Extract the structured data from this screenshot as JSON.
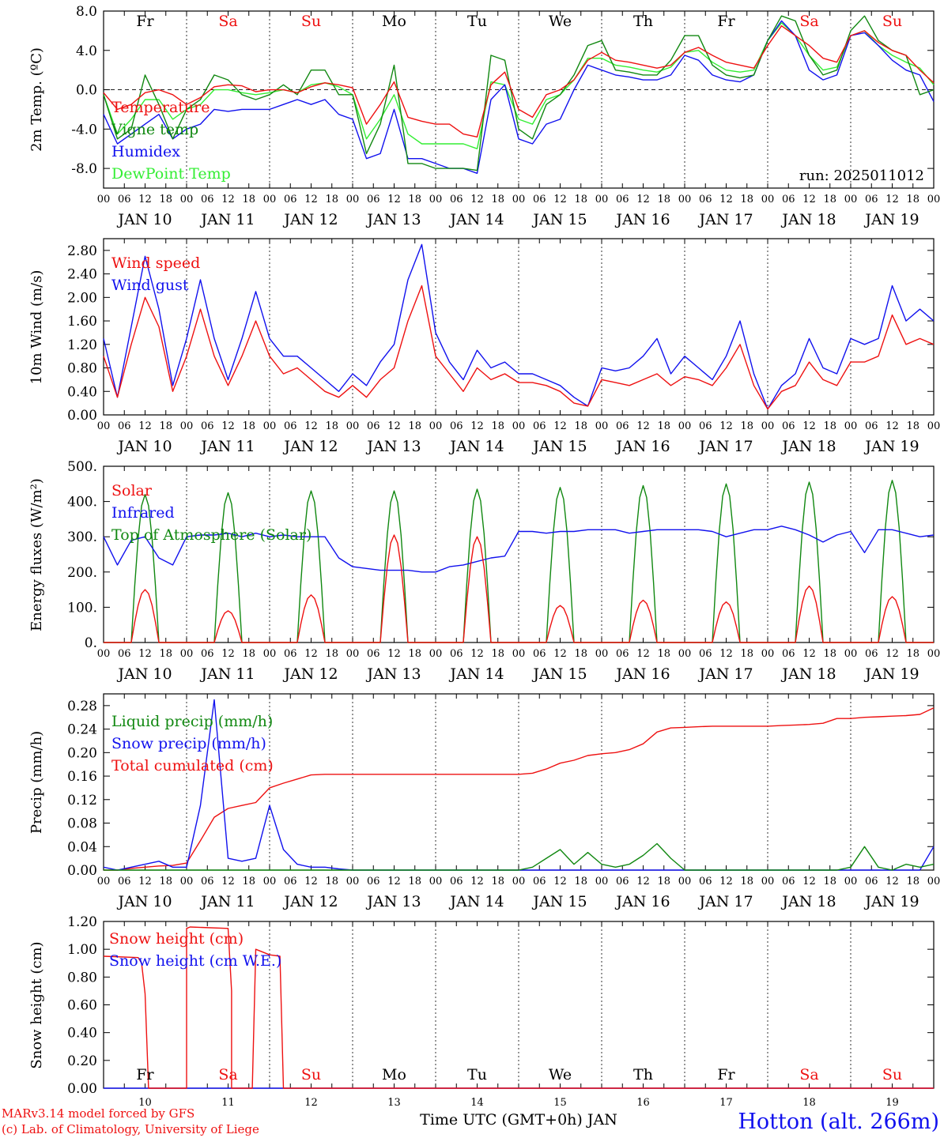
{
  "figure": {
    "run_label": "run: 2025011012",
    "credit_line1": "MARv3.14 model forced by GFS",
    "credit_line2": "(c) Lab. of Climatology, University of Liege",
    "station": "Hotton (alt. 266m)",
    "xlabel": "Time UTC (GMT+0h) JAN",
    "colors": {
      "red": "#ee1111",
      "green": "#118811",
      "blue": "#1111ee",
      "lightgreen": "#33ee33",
      "axis": "#000000"
    },
    "time_axis": {
      "hour_ticks": [
        "00",
        "06",
        "12",
        "18"
      ],
      "day_dates": [
        "JAN 10",
        "JAN 11",
        "JAN 12",
        "JAN 13",
        "JAN 14",
        "JAN 15",
        "JAN 16",
        "JAN 17",
        "JAN 18",
        "JAN 19"
      ],
      "day_names": [
        "Fr",
        "Sa",
        "Su",
        "Mo",
        "Tu",
        "We",
        "Th",
        "Fr",
        "Sa",
        "Su"
      ],
      "weekend_flags": [
        false,
        true,
        true,
        false,
        false,
        false,
        false,
        false,
        true,
        true
      ],
      "bottom_numbers": [
        "10",
        "11",
        "12",
        "13",
        "14",
        "15",
        "16",
        "17",
        "18",
        "19"
      ],
      "final_tick": "00"
    }
  },
  "chart_data": [
    {
      "type": "line",
      "ylabel": "2m Temp. (ºC)",
      "ylim": [
        -10,
        8
      ],
      "ytick_labels": [
        "-8.0",
        "-4.0",
        "0.0",
        "4.0",
        "8.0"
      ],
      "show_day_names": true,
      "zero_line": true,
      "x": [
        0,
        4,
        8,
        12,
        16,
        20,
        24,
        28,
        32,
        36,
        40,
        44,
        48,
        52,
        56,
        60,
        64,
        68,
        72,
        76,
        80,
        84,
        88,
        92,
        96,
        100,
        104,
        108,
        112,
        116,
        120,
        124,
        128,
        132,
        136,
        140,
        144,
        148,
        152,
        156,
        160,
        164,
        168,
        172,
        176,
        180,
        184,
        188,
        192,
        196,
        200,
        204,
        208,
        212,
        216,
        220,
        224,
        228,
        232,
        236,
        240
      ],
      "series": [
        {
          "name": "Temperature",
          "color": "red",
          "values": [
            -0.3,
            -2.0,
            -1.5,
            -0.3,
            0.0,
            -0.5,
            -1.5,
            -0.8,
            0.3,
            0.5,
            0.4,
            -0.2,
            0.0,
            0.0,
            -0.3,
            0.3,
            0.7,
            0.5,
            0.2,
            -3.5,
            -1.5,
            0.8,
            -2.8,
            -3.2,
            -3.5,
            -3.5,
            -4.5,
            -4.8,
            0.5,
            1.8,
            -2.0,
            -2.8,
            -0.5,
            0.0,
            1.0,
            3.0,
            3.8,
            3.0,
            2.8,
            2.5,
            2.2,
            2.5,
            3.8,
            4.3,
            3.5,
            2.8,
            2.5,
            2.2,
            4.5,
            6.5,
            5.5,
            4.5,
            3.2,
            2.8,
            5.5,
            6.0,
            4.8,
            4.0,
            3.5,
            2.0,
            0.7
          ]
        },
        {
          "name": "Vigne temp",
          "color": "green",
          "values": [
            -0.5,
            -5.0,
            -4.0,
            1.5,
            -1.5,
            -5.0,
            -2.0,
            -1.0,
            1.5,
            1.0,
            -0.5,
            -1.0,
            -0.5,
            0.5,
            -0.5,
            2.0,
            2.0,
            -0.5,
            -0.5,
            -6.5,
            -3.5,
            2.5,
            -7.5,
            -7.5,
            -8.0,
            -8.0,
            -8.0,
            -8.2,
            3.5,
            3.0,
            -4.0,
            -5.0,
            -1.5,
            -0.5,
            1.5,
            4.5,
            5.0,
            2.0,
            1.8,
            1.5,
            1.5,
            3.0,
            5.5,
            5.5,
            2.5,
            1.5,
            1.2,
            1.5,
            5.0,
            7.5,
            7.0,
            3.5,
            1.5,
            2.0,
            6.0,
            7.5,
            5.0,
            4.0,
            3.5,
            -0.5,
            0.0
          ]
        },
        {
          "name": "Humidex",
          "color": "blue",
          "values": [
            -2.5,
            -5.5,
            -4.5,
            -3.5,
            -2.5,
            -5.0,
            -4.0,
            -3.5,
            -2.0,
            -2.2,
            -2.0,
            -2.0,
            -2.0,
            -1.5,
            -1.0,
            -1.5,
            -1.0,
            -2.5,
            -3.0,
            -7.0,
            -6.5,
            -2.0,
            -7.0,
            -7.0,
            -7.5,
            -8.0,
            -8.0,
            -8.5,
            -1.0,
            0.5,
            -5.0,
            -5.5,
            -3.5,
            -3.0,
            0.0,
            2.5,
            2.0,
            1.5,
            1.3,
            1.0,
            1.0,
            1.5,
            3.5,
            3.0,
            1.5,
            1.0,
            0.8,
            1.5,
            5.0,
            7.0,
            5.5,
            2.0,
            1.0,
            1.5,
            5.5,
            5.8,
            4.5,
            3.0,
            2.0,
            1.5,
            -1.2
          ]
        },
        {
          "name": "DewPoint Temp",
          "color": "lightgreen",
          "values": [
            -0.5,
            -4.5,
            -3.0,
            -1.0,
            -1.0,
            -3.0,
            -2.0,
            -1.5,
            0.0,
            0.0,
            -0.3,
            -0.5,
            -0.3,
            0.0,
            -0.3,
            0.5,
            0.7,
            0.3,
            -0.5,
            -5.0,
            -3.0,
            -0.5,
            -4.5,
            -5.5,
            -5.5,
            -5.5,
            -5.5,
            -6.0,
            0.8,
            0.5,
            -3.0,
            -3.5,
            -1.0,
            -0.5,
            1.0,
            3.2,
            3.2,
            2.5,
            2.3,
            2.0,
            1.8,
            2.3,
            3.8,
            4.0,
            2.8,
            2.0,
            1.8,
            2.0,
            5.0,
            6.8,
            5.5,
            3.5,
            2.0,
            2.3,
            5.5,
            6.0,
            4.5,
            3.5,
            2.8,
            2.2,
            0.5
          ]
        }
      ]
    },
    {
      "type": "line",
      "ylabel": "10m Wind (m/s)",
      "ylim": [
        0,
        3.0
      ],
      "ytick_labels": [
        "0.00",
        "0.40",
        "0.80",
        "1.20",
        "1.60",
        "2.00",
        "2.40",
        "2.80"
      ],
      "show_day_names": false,
      "x": [
        0,
        4,
        8,
        12,
        16,
        20,
        24,
        28,
        32,
        36,
        40,
        44,
        48,
        52,
        56,
        60,
        64,
        68,
        72,
        76,
        80,
        84,
        88,
        92,
        96,
        100,
        104,
        108,
        112,
        116,
        120,
        124,
        128,
        132,
        136,
        140,
        144,
        148,
        152,
        156,
        160,
        164,
        168,
        172,
        176,
        180,
        184,
        188,
        192,
        196,
        200,
        204,
        208,
        212,
        216,
        220,
        224,
        228,
        232,
        236,
        240
      ],
      "series": [
        {
          "name": "Wind speed",
          "color": "red",
          "values": [
            1.0,
            0.3,
            1.2,
            2.0,
            1.5,
            0.4,
            1.0,
            1.8,
            1.0,
            0.5,
            1.0,
            1.6,
            1.0,
            0.7,
            0.8,
            0.6,
            0.4,
            0.3,
            0.5,
            0.3,
            0.6,
            0.8,
            1.6,
            2.2,
            1.0,
            0.7,
            0.4,
            0.8,
            0.6,
            0.7,
            0.55,
            0.55,
            0.5,
            0.4,
            0.2,
            0.15,
            0.6,
            0.55,
            0.5,
            0.6,
            0.7,
            0.5,
            0.65,
            0.6,
            0.5,
            0.8,
            1.2,
            0.5,
            0.1,
            0.4,
            0.5,
            0.9,
            0.6,
            0.5,
            0.9,
            0.9,
            1.0,
            1.7,
            1.2,
            1.3,
            1.2
          ]
        },
        {
          "name": "Wind gust",
          "color": "blue",
          "values": [
            1.3,
            0.3,
            1.5,
            2.7,
            1.8,
            0.5,
            1.3,
            2.3,
            1.3,
            0.6,
            1.3,
            2.1,
            1.3,
            1.0,
            1.0,
            0.8,
            0.6,
            0.4,
            0.7,
            0.5,
            0.9,
            1.2,
            2.3,
            2.9,
            1.4,
            0.9,
            0.6,
            1.1,
            0.8,
            0.9,
            0.7,
            0.7,
            0.6,
            0.5,
            0.3,
            0.15,
            0.8,
            0.75,
            0.8,
            1.0,
            1.3,
            0.7,
            1.0,
            0.8,
            0.6,
            1.0,
            1.6,
            0.7,
            0.1,
            0.5,
            0.7,
            1.3,
            0.8,
            0.7,
            1.3,
            1.2,
            1.3,
            2.2,
            1.6,
            1.8,
            1.6
          ]
        }
      ]
    },
    {
      "type": "line",
      "ylabel": "Energy fluxes (W/m²)",
      "ylim": [
        0,
        500
      ],
      "ytick_labels": [
        "0.",
        "100.",
        "200.",
        "300.",
        "400.",
        "500."
      ],
      "show_day_names": false,
      "sun_hours": [
        8,
        16
      ],
      "series": [
        {
          "name": "Solar",
          "color": "red",
          "daily_peaks": [
            150,
            90,
            135,
            305,
            300,
            105,
            120,
            115,
            160,
            130
          ]
        },
        {
          "name": "Infrared",
          "color": "blue",
          "x": [
            0,
            4,
            8,
            12,
            16,
            20,
            24,
            28,
            32,
            36,
            40,
            44,
            48,
            52,
            56,
            60,
            64,
            68,
            72,
            76,
            80,
            84,
            88,
            92,
            96,
            100,
            104,
            108,
            112,
            116,
            120,
            124,
            128,
            132,
            136,
            140,
            144,
            148,
            152,
            156,
            160,
            164,
            168,
            172,
            176,
            180,
            184,
            188,
            192,
            196,
            200,
            204,
            208,
            212,
            216,
            220,
            224,
            228,
            232,
            236,
            240
          ],
          "values": [
            300,
            220,
            290,
            300,
            240,
            220,
            300,
            305,
            305,
            310,
            300,
            310,
            300,
            305,
            300,
            300,
            300,
            240,
            215,
            210,
            205,
            205,
            205,
            200,
            200,
            215,
            220,
            230,
            240,
            245,
            315,
            315,
            310,
            315,
            315,
            320,
            320,
            320,
            310,
            315,
            320,
            320,
            320,
            320,
            315,
            300,
            310,
            320,
            320,
            330,
            320,
            305,
            285,
            305,
            315,
            255,
            320,
            320,
            310,
            300,
            305
          ]
        },
        {
          "name": "Top of Atmosphere (Solar)",
          "color": "green",
          "daily_peaks": [
            420,
            425,
            430,
            430,
            435,
            440,
            445,
            450,
            455,
            460
          ]
        }
      ]
    },
    {
      "type": "line",
      "ylabel": "Precip (mm/h)",
      "ylim": [
        0,
        0.3
      ],
      "ytick_labels": [
        "0.00",
        "0.04",
        "0.08",
        "0.12",
        "0.16",
        "0.20",
        "0.24",
        "0.28"
      ],
      "show_day_names": false,
      "x": [
        0,
        4,
        8,
        12,
        16,
        20,
        24,
        28,
        32,
        36,
        40,
        44,
        48,
        52,
        56,
        60,
        64,
        68,
        72,
        76,
        80,
        84,
        88,
        92,
        96,
        100,
        104,
        108,
        112,
        116,
        120,
        124,
        128,
        132,
        136,
        140,
        144,
        148,
        152,
        156,
        160,
        164,
        168,
        172,
        176,
        180,
        184,
        188,
        192,
        196,
        200,
        204,
        208,
        212,
        216,
        220,
        224,
        228,
        232,
        236,
        240
      ],
      "series": [
        {
          "name": "Liquid precip (mm/h)",
          "color": "green",
          "values": [
            0,
            0,
            0,
            0,
            0,
            0,
            0,
            0,
            0,
            0,
            0,
            0,
            0,
            0,
            0,
            0,
            0,
            0,
            0,
            0,
            0,
            0,
            0,
            0,
            0,
            0,
            0,
            0,
            0,
            0,
            0,
            0.005,
            0.02,
            0.035,
            0.01,
            0.03,
            0.01,
            0.005,
            0.01,
            0.025,
            0.045,
            0.02,
            0,
            0,
            0,
            0,
            0,
            0,
            0,
            0,
            0,
            0,
            0,
            0,
            0.005,
            0.04,
            0.005,
            0,
            0.01,
            0.005,
            0.01
          ]
        },
        {
          "name": "Snow precip (mm/h)",
          "color": "blue",
          "values": [
            0.005,
            0,
            0.005,
            0.01,
            0.015,
            0.005,
            0.005,
            0.11,
            0.29,
            0.02,
            0.015,
            0.02,
            0.11,
            0.035,
            0.01,
            0.005,
            0.005,
            0.002,
            0,
            0,
            0,
            0,
            0,
            0,
            0,
            0,
            0,
            0,
            0,
            0,
            0,
            0,
            0,
            0,
            0,
            0,
            0,
            0,
            0,
            0,
            0,
            0,
            0,
            0,
            0,
            0,
            0,
            0,
            0,
            0,
            0,
            0,
            0,
            0,
            0,
            0,
            0,
            0,
            0,
            0,
            0.04
          ]
        },
        {
          "name": "Total cumulated (cm)",
          "color": "red",
          "values": [
            0,
            0,
            0.003,
            0.005,
            0.007,
            0.008,
            0.012,
            0.05,
            0.09,
            0.105,
            0.11,
            0.115,
            0.14,
            0.148,
            0.155,
            0.162,
            0.163,
            0.163,
            0.163,
            0.163,
            0.163,
            0.163,
            0.163,
            0.163,
            0.163,
            0.163,
            0.163,
            0.163,
            0.163,
            0.163,
            0.163,
            0.165,
            0.172,
            0.182,
            0.187,
            0.195,
            0.198,
            0.2,
            0.205,
            0.215,
            0.235,
            0.242,
            0.243,
            0.244,
            0.245,
            0.245,
            0.245,
            0.245,
            0.245,
            0.246,
            0.247,
            0.248,
            0.25,
            0.258,
            0.258,
            0.26,
            0.261,
            0.262,
            0.263,
            0.265,
            0.276
          ]
        }
      ]
    },
    {
      "type": "line",
      "ylabel": "Snow height (cm)",
      "ylim": [
        0,
        1.2
      ],
      "ytick_labels": [
        "0.00",
        "0.20",
        "0.40",
        "0.60",
        "0.80",
        "1.00",
        "1.20"
      ],
      "show_day_names": false,
      "bottom_day_names": true,
      "series": [
        {
          "name": "Snow height (cm)",
          "color": "red",
          "x": [
            0,
            10,
            11,
            12,
            13,
            24,
            24,
            25,
            36,
            37,
            37,
            43,
            44,
            44,
            48,
            51,
            52,
            240
          ],
          "values": [
            0.95,
            0.94,
            0.9,
            0.68,
            0,
            0,
            1.15,
            1.16,
            1.15,
            0.7,
            0,
            0,
            1.0,
            1.0,
            0.96,
            0.95,
            0,
            0
          ]
        },
        {
          "name": "Snow height (cm W.E.)",
          "color": "blue",
          "x": [
            0,
            240
          ],
          "values": [
            0,
            0
          ]
        }
      ]
    }
  ]
}
